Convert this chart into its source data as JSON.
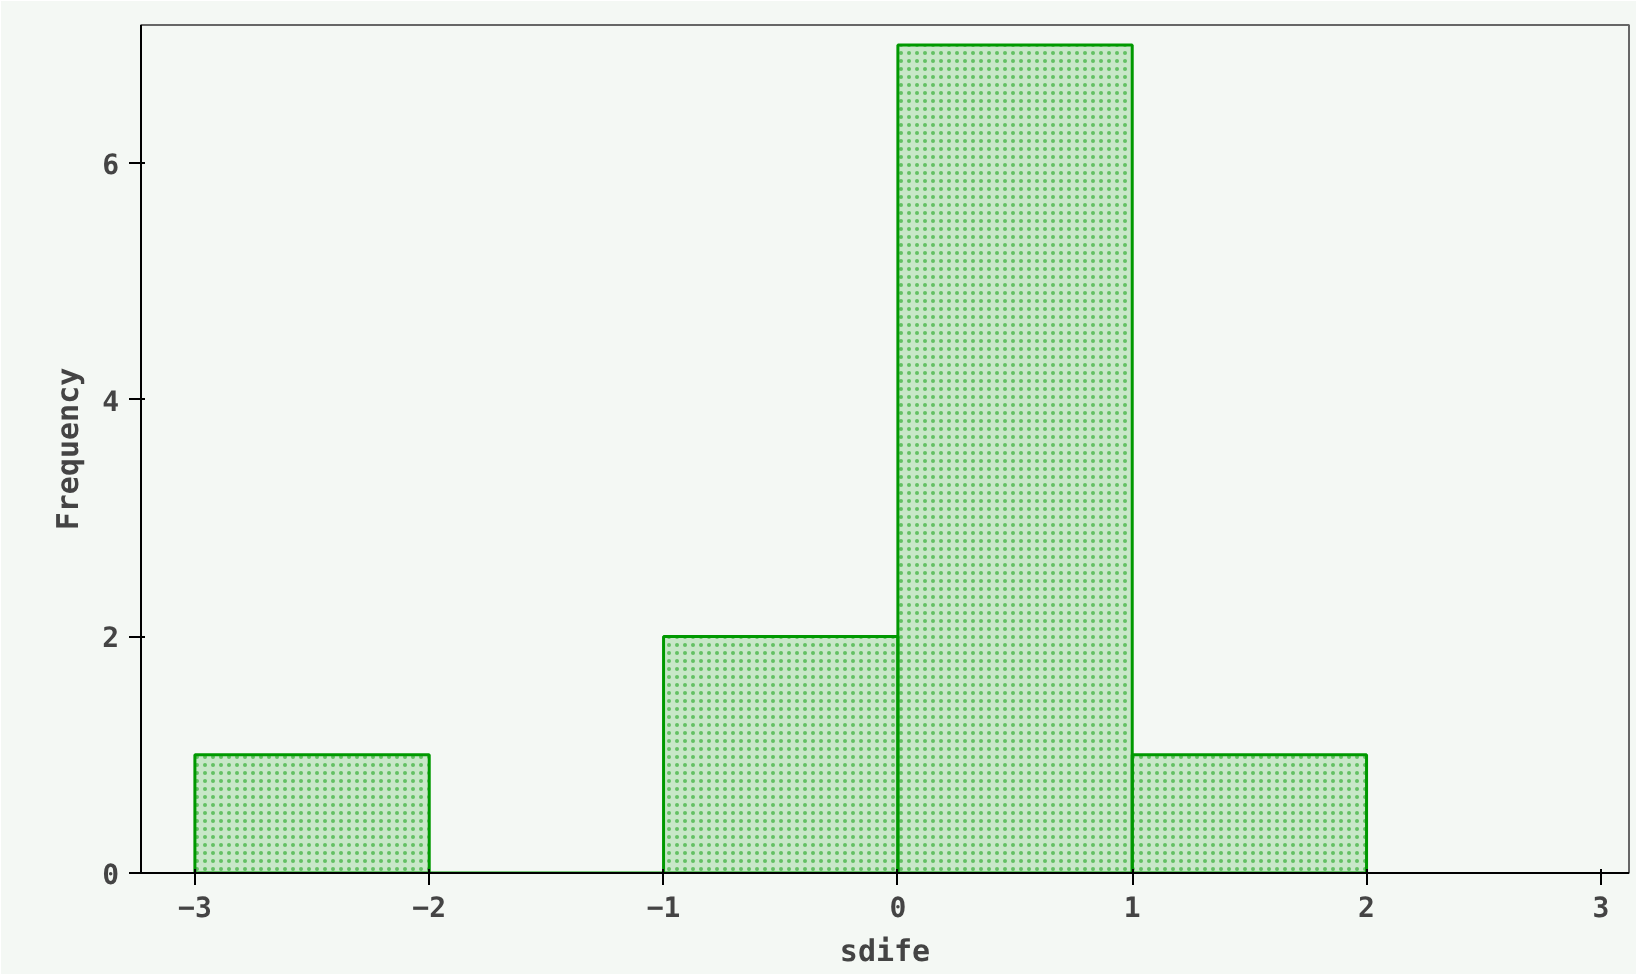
{
  "chart_data": {
    "type": "histogram",
    "xlabel": "sdife",
    "ylabel": "Frequency",
    "bins": [
      -3,
      -2,
      -1,
      0,
      1,
      2
    ],
    "values": [
      1,
      0,
      2,
      7,
      1
    ],
    "color": "#009900",
    "xlim": [
      -3.23,
      3.12
    ],
    "ylim": [
      0,
      7.17
    ],
    "xticks": [
      -3,
      -2,
      -1,
      0,
      1,
      2,
      3
    ],
    "yticks": [
      0,
      2,
      4,
      6
    ],
    "grid": false
  }
}
